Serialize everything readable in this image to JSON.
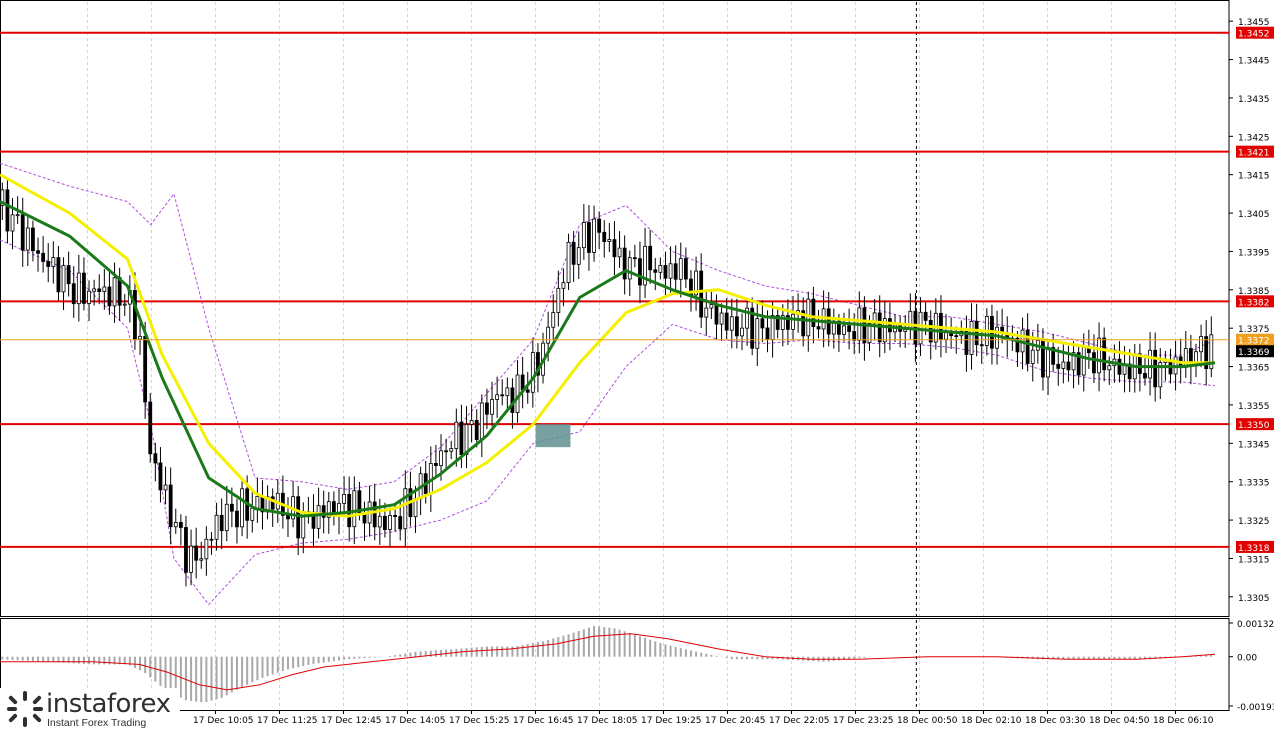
{
  "chart_data": {
    "type": "candlestick",
    "instrument_price_axis": {
      "ylim": [
        1.33,
        1.346
      ],
      "ticks": [
        "1.3455",
        "1.3445",
        "1.3435",
        "1.3425",
        "1.3415",
        "1.3405",
        "1.3395",
        "1.3385",
        "1.3375",
        "1.3365",
        "1.3355",
        "1.3345",
        "1.3335",
        "1.3325",
        "1.3315",
        "1.3305"
      ]
    },
    "x_labels": [
      "17 Dec 10:05",
      "17 Dec 11:25",
      "17 Dec 12:45",
      "17 Dec 14:05",
      "17 Dec 15:25",
      "17 Dec 16:45",
      "17 Dec 18:05",
      "17 Dec 19:25",
      "17 Dec 20:45",
      "17 Dec 22:05",
      "17 Dec 23:25",
      "18 Dec 00:50",
      "18 Dec 02:10",
      "18 Dec 03:30",
      "18 Dec 04:50",
      "18 Dec 06:10"
    ],
    "x_label_cut": "5",
    "levels": [
      {
        "value": 1.3452,
        "label": "1.3452",
        "color": "#e00000"
      },
      {
        "value": 1.3421,
        "label": "1.3421",
        "color": "#e00000"
      },
      {
        "value": 1.3382,
        "label": "1.3382",
        "color": "#e00000"
      },
      {
        "value": 1.335,
        "label": "1.3350",
        "color": "#e00000"
      },
      {
        "value": 1.3318,
        "label": "1.3318",
        "color": "#e00000"
      }
    ],
    "price_markers": [
      {
        "value": 1.3372,
        "label": "1.3372",
        "color": "#f0a020",
        "style": "line"
      },
      {
        "value": 1.3369,
        "label": "1.3369",
        "color": "#000000",
        "style": "tag"
      }
    ],
    "price_path": [
      [
        0,
        1.3407
      ],
      [
        6,
        1.3403
      ],
      [
        12,
        1.3398
      ],
      [
        18,
        1.3393
      ],
      [
        24,
        1.339
      ],
      [
        30,
        1.3386
      ],
      [
        36,
        1.3384
      ],
      [
        42,
        1.3385
      ],
      [
        48,
        1.3384
      ],
      [
        54,
        1.3383
      ],
      [
        60,
        1.3374
      ],
      [
        64,
        1.3345
      ],
      [
        70,
        1.3333
      ],
      [
        76,
        1.3323
      ],
      [
        82,
        1.3314
      ],
      [
        88,
        1.3317
      ],
      [
        94,
        1.3325
      ],
      [
        100,
        1.3327
      ],
      [
        106,
        1.3328
      ],
      [
        112,
        1.3329
      ],
      [
        118,
        1.333
      ],
      [
        124,
        1.3327
      ],
      [
        130,
        1.3325
      ],
      [
        136,
        1.3326
      ],
      [
        142,
        1.3328
      ],
      [
        148,
        1.3329
      ],
      [
        154,
        1.3328
      ],
      [
        160,
        1.3326
      ],
      [
        166,
        1.3324
      ],
      [
        172,
        1.3326
      ],
      [
        178,
        1.333
      ],
      [
        184,
        1.3336
      ],
      [
        190,
        1.3342
      ],
      [
        196,
        1.3346
      ],
      [
        202,
        1.3348
      ],
      [
        208,
        1.3352
      ],
      [
        214,
        1.3358
      ],
      [
        220,
        1.3357
      ],
      [
        226,
        1.336
      ],
      [
        232,
        1.3366
      ],
      [
        238,
        1.3378
      ],
      [
        244,
        1.3392
      ],
      [
        250,
        1.3397
      ],
      [
        256,
        1.3401
      ],
      [
        262,
        1.3398
      ],
      [
        268,
        1.3392
      ],
      [
        274,
        1.3391
      ],
      [
        280,
        1.3392
      ],
      [
        286,
        1.3389
      ],
      [
        292,
        1.3391
      ],
      [
        298,
        1.3387
      ],
      [
        304,
        1.338
      ],
      [
        310,
        1.3378
      ],
      [
        316,
        1.3375
      ],
      [
        322,
        1.3376
      ],
      [
        328,
        1.3374
      ],
      [
        334,
        1.3376
      ],
      [
        340,
        1.3377
      ],
      [
        346,
        1.3378
      ],
      [
        352,
        1.3377
      ],
      [
        358,
        1.3376
      ],
      [
        364,
        1.3374
      ],
      [
        370,
        1.3375
      ],
      [
        376,
        1.3376
      ],
      [
        382,
        1.3375
      ],
      [
        388,
        1.3375
      ],
      [
        394,
        1.3376
      ],
      [
        400,
        1.3376
      ],
      [
        406,
        1.3374
      ],
      [
        412,
        1.3373
      ],
      [
        418,
        1.3372
      ],
      [
        424,
        1.3373
      ],
      [
        430,
        1.3374
      ],
      [
        436,
        1.3372
      ],
      [
        442,
        1.337
      ],
      [
        448,
        1.3368
      ],
      [
        454,
        1.3366
      ],
      [
        460,
        1.3365
      ],
      [
        466,
        1.3367
      ],
      [
        472,
        1.3368
      ],
      [
        478,
        1.3366
      ],
      [
        484,
        1.3364
      ],
      [
        490,
        1.3365
      ],
      [
        496,
        1.3364
      ],
      [
        502,
        1.3365
      ],
      [
        508,
        1.3366
      ],
      [
        514,
        1.3368
      ],
      [
        520,
        1.337
      ],
      [
        524,
        1.3369
      ]
    ],
    "ma_slow": {
      "color": "#f5f000",
      "values": [
        [
          0,
          1.3415
        ],
        [
          30,
          1.3405
        ],
        [
          55,
          1.3393
        ],
        [
          70,
          1.3368
        ],
        [
          90,
          1.3345
        ],
        [
          110,
          1.3332
        ],
        [
          130,
          1.3327
        ],
        [
          150,
          1.3326
        ],
        [
          170,
          1.3328
        ],
        [
          190,
          1.3333
        ],
        [
          210,
          1.334
        ],
        [
          230,
          1.335
        ],
        [
          250,
          1.3366
        ],
        [
          270,
          1.3379
        ],
        [
          290,
          1.3384
        ],
        [
          310,
          1.3385
        ],
        [
          330,
          1.3381
        ],
        [
          350,
          1.3378
        ],
        [
          370,
          1.3377
        ],
        [
          390,
          1.3376
        ],
        [
          410,
          1.3375
        ],
        [
          430,
          1.3374
        ],
        [
          450,
          1.3372
        ],
        [
          470,
          1.337
        ],
        [
          490,
          1.3368
        ],
        [
          510,
          1.3366
        ],
        [
          524,
          1.3366
        ]
      ]
    },
    "ma_fast": {
      "color": "#1a7a1a",
      "values": [
        [
          0,
          1.3408
        ],
        [
          30,
          1.3399
        ],
        [
          55,
          1.3386
        ],
        [
          70,
          1.3362
        ],
        [
          90,
          1.3336
        ],
        [
          110,
          1.3328
        ],
        [
          130,
          1.3326
        ],
        [
          150,
          1.3327
        ],
        [
          170,
          1.3329
        ],
        [
          190,
          1.3337
        ],
        [
          210,
          1.3347
        ],
        [
          230,
          1.3362
        ],
        [
          250,
          1.3383
        ],
        [
          270,
          1.339
        ],
        [
          290,
          1.3385
        ],
        [
          310,
          1.3381
        ],
        [
          330,
          1.3378
        ],
        [
          350,
          1.3377
        ],
        [
          370,
          1.3376
        ],
        [
          390,
          1.3375
        ],
        [
          410,
          1.3374
        ],
        [
          430,
          1.3373
        ],
        [
          450,
          1.337
        ],
        [
          470,
          1.3367
        ],
        [
          490,
          1.3365
        ],
        [
          510,
          1.3365
        ],
        [
          524,
          1.3366
        ]
      ]
    },
    "bollinger": {
      "color": "#b050e0",
      "upper": [
        [
          0,
          1.3418
        ],
        [
          30,
          1.3412
        ],
        [
          55,
          1.3408
        ],
        [
          65,
          1.3402
        ],
        [
          75,
          1.341
        ],
        [
          90,
          1.3375
        ],
        [
          110,
          1.3336
        ],
        [
          130,
          1.3335
        ],
        [
          150,
          1.3333
        ],
        [
          170,
          1.3335
        ],
        [
          190,
          1.3344
        ],
        [
          210,
          1.3358
        ],
        [
          230,
          1.3372
        ],
        [
          250,
          1.3402
        ],
        [
          270,
          1.3407
        ],
        [
          290,
          1.3395
        ],
        [
          310,
          1.339
        ],
        [
          330,
          1.3386
        ],
        [
          350,
          1.3384
        ],
        [
          370,
          1.3381
        ],
        [
          390,
          1.3378
        ],
        [
          410,
          1.3378
        ],
        [
          430,
          1.3376
        ],
        [
          450,
          1.3374
        ],
        [
          470,
          1.3371
        ],
        [
          490,
          1.3368
        ],
        [
          510,
          1.3368
        ],
        [
          524,
          1.3372
        ]
      ],
      "lower": [
        [
          0,
          1.3398
        ],
        [
          30,
          1.339
        ],
        [
          55,
          1.3375
        ],
        [
          65,
          1.335
        ],
        [
          75,
          1.3315
        ],
        [
          90,
          1.3303
        ],
        [
          110,
          1.3316
        ],
        [
          130,
          1.3319
        ],
        [
          150,
          1.332
        ],
        [
          170,
          1.3322
        ],
        [
          190,
          1.3325
        ],
        [
          210,
          1.333
        ],
        [
          230,
          1.3345
        ],
        [
          250,
          1.3348
        ],
        [
          270,
          1.3365
        ],
        [
          290,
          1.3376
        ],
        [
          310,
          1.3372
        ],
        [
          330,
          1.3371
        ],
        [
          350,
          1.3372
        ],
        [
          370,
          1.3371
        ],
        [
          390,
          1.3371
        ],
        [
          410,
          1.337
        ],
        [
          430,
          1.3368
        ],
        [
          450,
          1.3364
        ],
        [
          470,
          1.3362
        ],
        [
          490,
          1.3361
        ],
        [
          510,
          1.3361
        ],
        [
          524,
          1.336
        ]
      ]
    },
    "signal_box": {
      "x_from": 231,
      "x_to": 246,
      "y_from": 1.3344,
      "y_to": 1.335,
      "color": "#5f8f8f"
    },
    "oscillator": {
      "ylim": [
        -0.00193,
        0.00132
      ],
      "ticks": [
        "0.00132",
        "0.00",
        "-0.00193"
      ],
      "histogram_color": "#a8a8a8",
      "signal_color": "#e00000",
      "bars": [
        [
          0,
          -0.0001
        ],
        [
          20,
          -0.0002
        ],
        [
          40,
          -0.0003
        ],
        [
          55,
          -0.0003
        ],
        [
          62,
          -0.0006
        ],
        [
          70,
          -0.0012
        ],
        [
          80,
          -0.0017
        ],
        [
          88,
          -0.0018
        ],
        [
          96,
          -0.0016
        ],
        [
          104,
          -0.0012
        ],
        [
          114,
          -0.0008
        ],
        [
          124,
          -0.0005
        ],
        [
          134,
          -0.0003
        ],
        [
          150,
          -0.0001
        ],
        [
          166,
          0.0
        ],
        [
          180,
          0.0002
        ],
        [
          196,
          0.0003
        ],
        [
          210,
          0.0004
        ],
        [
          222,
          0.0004
        ],
        [
          234,
          0.0006
        ],
        [
          246,
          0.0009
        ],
        [
          256,
          0.0012
        ],
        [
          266,
          0.0011
        ],
        [
          276,
          0.0008
        ],
        [
          286,
          0.0005
        ],
        [
          300,
          0.0002
        ],
        [
          316,
          -0.0001
        ],
        [
          336,
          -0.0001
        ],
        [
          356,
          -0.0002
        ],
        [
          376,
          0.0
        ],
        [
          400,
          0.0
        ],
        [
          424,
          0.0
        ],
        [
          448,
          -0.0001
        ],
        [
          472,
          -0.0001
        ],
        [
          496,
          -0.0001
        ],
        [
          512,
          0.0
        ],
        [
          524,
          0.0001
        ]
      ],
      "signal": [
        [
          0,
          -0.0002
        ],
        [
          40,
          -0.0002
        ],
        [
          60,
          -0.0003
        ],
        [
          72,
          -0.0006
        ],
        [
          86,
          -0.0011
        ],
        [
          98,
          -0.0013
        ],
        [
          112,
          -0.0011
        ],
        [
          126,
          -0.0007
        ],
        [
          140,
          -0.0004
        ],
        [
          160,
          -0.0002
        ],
        [
          180,
          0.0
        ],
        [
          200,
          0.0002
        ],
        [
          220,
          0.0003
        ],
        [
          240,
          0.0005
        ],
        [
          256,
          0.0008
        ],
        [
          272,
          0.0009
        ],
        [
          288,
          0.0007
        ],
        [
          310,
          0.0003
        ],
        [
          330,
          0.0
        ],
        [
          350,
          -0.0001
        ],
        [
          370,
          -0.0001
        ],
        [
          400,
          0.0
        ],
        [
          430,
          0.0
        ],
        [
          460,
          -0.0001
        ],
        [
          490,
          -0.0001
        ],
        [
          510,
          0.0
        ],
        [
          524,
          0.0001
        ]
      ]
    },
    "session_divider": {
      "x": 395
    }
  },
  "brand": {
    "name": "instaforex",
    "tagline": "Instant Forex Trading",
    "mark": "instaforex-logo-icon"
  },
  "colors": {
    "background": "#ffffff",
    "axis": "#000000",
    "grid": "#d8d8d8",
    "level": "#e00000"
  }
}
